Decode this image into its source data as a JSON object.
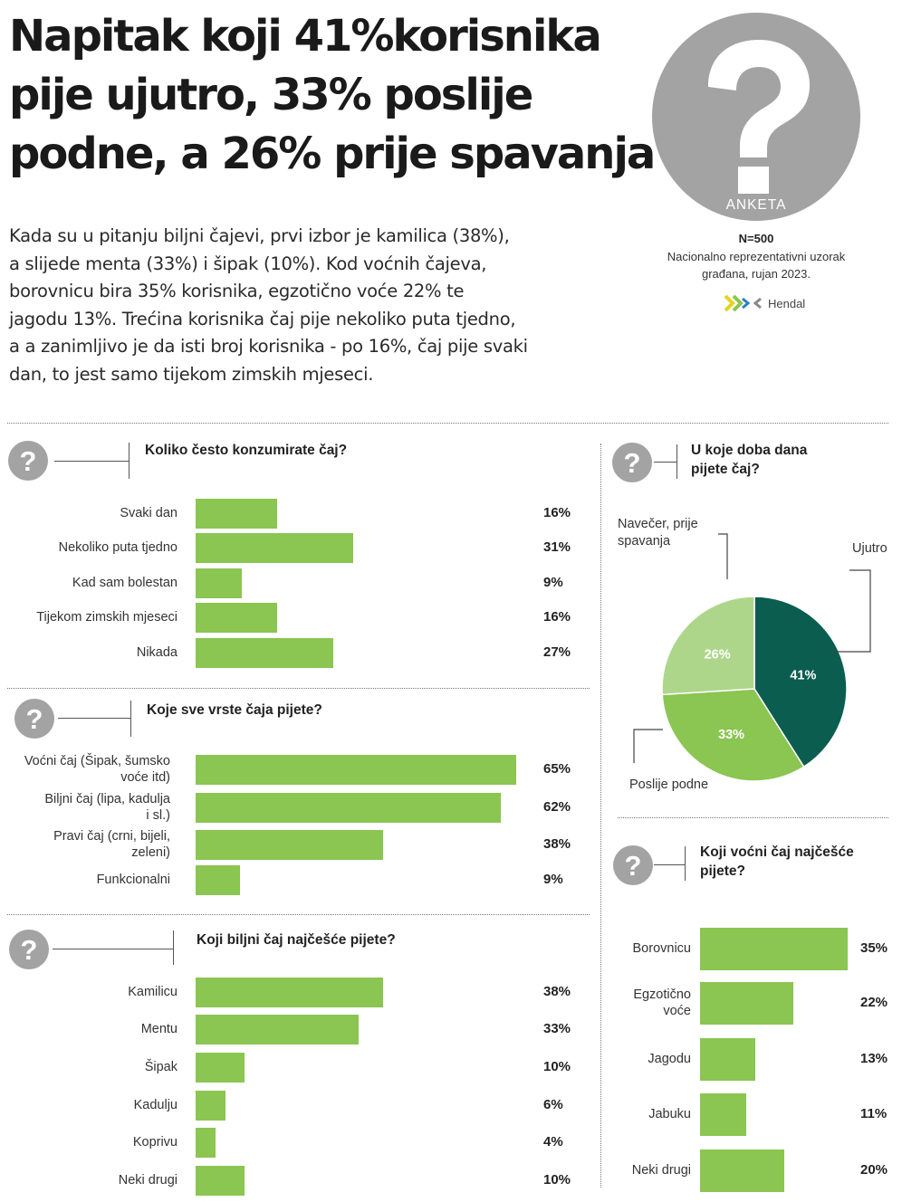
{
  "headline": [
    "Napitak koji 41%korisnika",
    "pije ujutro, 33% poslije",
    "podne, a 26% prije spavanja"
  ],
  "lead": [
    "Kada su u pitanju biljni čajevi, prvi izbor je kamilica (38%),",
    "a slijede menta (33%) i šipak (10%). Kod voćnih čajeva,",
    "borovnicu bira 35% korisnika, egzotično voće 22% te",
    "jagodu 13%. Trećina korisnika čaj pije nekoliko puta tjedno,",
    "a a zanimljivo je da isti broj korisnika - po 16%, čaj pije svaki",
    "dan, to jest samo tijekom zimskih mjeseci."
  ],
  "survey": {
    "badge": "ANKETA",
    "n": "N=500",
    "desc": [
      "Nacionalno reprezentativni uzorak",
      "građana, rujan 2023."
    ],
    "brand": "Hendal"
  },
  "colors": {
    "bar": "#8bc552",
    "dark_green": "#0b5e4f",
    "mid_green": "#8bc552",
    "light_green": "#aed68a",
    "icon_grey": "#a3a3a3"
  },
  "icons": {
    "question": "question-mark-icon",
    "logo": "hendal-logo-icon"
  },
  "chart_data": [
    {
      "type": "bar",
      "title": "Koliko često konzumirate čaj?",
      "categories": [
        "Svaki dan",
        "Nekoliko puta tjedno",
        "Kad sam bolestan",
        "Tijekom zimskih mjeseci",
        "Nikada"
      ],
      "values": [
        16,
        31,
        9,
        16,
        27
      ],
      "labels": [
        "16%",
        "31%",
        "9%",
        "16%",
        "27%"
      ],
      "unit": "%"
    },
    {
      "type": "bar",
      "title": "Koje sve vrste čaja pijete?",
      "categories": [
        "Voćni čaj (Šipak, šumsko voće itd)",
        "Biljni čaj (lipa, kadulja i sl.)",
        "Pravi čaj (crni, bijeli, zeleni)",
        "Funkcionalni"
      ],
      "category_lines": [
        [
          "Voćni čaj (Šipak, šumsko",
          "voće itd)"
        ],
        [
          "Biljni čaj (lipa, kadulja",
          "i sl.)"
        ],
        [
          "Pravi čaj (crni, bijeli,",
          "zeleni)"
        ],
        [
          "Funkcionalni"
        ]
      ],
      "values": [
        65,
        62,
        38,
        9
      ],
      "labels": [
        "65%",
        "62%",
        "38%",
        "9%"
      ],
      "unit": "%"
    },
    {
      "type": "bar",
      "title": "Koji biljni čaj najčešće pijete?",
      "categories": [
        "Kamilicu",
        "Mentu",
        "Šipak",
        "Kadulju",
        "Koprivu",
        "Neki drugi"
      ],
      "values": [
        38,
        33,
        10,
        6,
        4,
        10
      ],
      "labels": [
        "38%",
        "33%",
        "10%",
        "6%",
        "4%",
        "10%"
      ],
      "unit": "%"
    },
    {
      "type": "pie",
      "title": "U koje doba dana pijete čaj?",
      "title_lines": [
        "U koje doba dana",
        "pijete čaj?"
      ],
      "categories": [
        "Ujutro",
        "Poslije podne",
        "Navečer, prije spavanja"
      ],
      "legend_lines": [
        [
          "Ujutro"
        ],
        [
          "Poslije podne"
        ],
        [
          "Navečer, prije",
          "spavanja"
        ]
      ],
      "values": [
        41,
        33,
        26
      ],
      "labels": [
        "41%",
        "33%",
        "26%"
      ],
      "colors": [
        "#0b5e4f",
        "#8bc552",
        "#aed68a"
      ],
      "unit": "%"
    },
    {
      "type": "bar",
      "title": "Koji voćni čaj najčešće pijete?",
      "title_lines": [
        "Koji voćni čaj najčešće",
        "pijete?"
      ],
      "categories": [
        "Borovnicu",
        "Egzotično voće",
        "Jagodu",
        "Jabuku",
        "Neki drugi"
      ],
      "category_lines": [
        [
          "Borovnicu"
        ],
        [
          "Egzotično",
          "voće"
        ],
        [
          "Jagodu"
        ],
        [
          "Jabuku"
        ],
        [
          "Neki drugi"
        ]
      ],
      "values": [
        35,
        22,
        13,
        11,
        20
      ],
      "labels": [
        "35%",
        "22%",
        "13%",
        "11%",
        "20%"
      ],
      "unit": "%"
    }
  ]
}
